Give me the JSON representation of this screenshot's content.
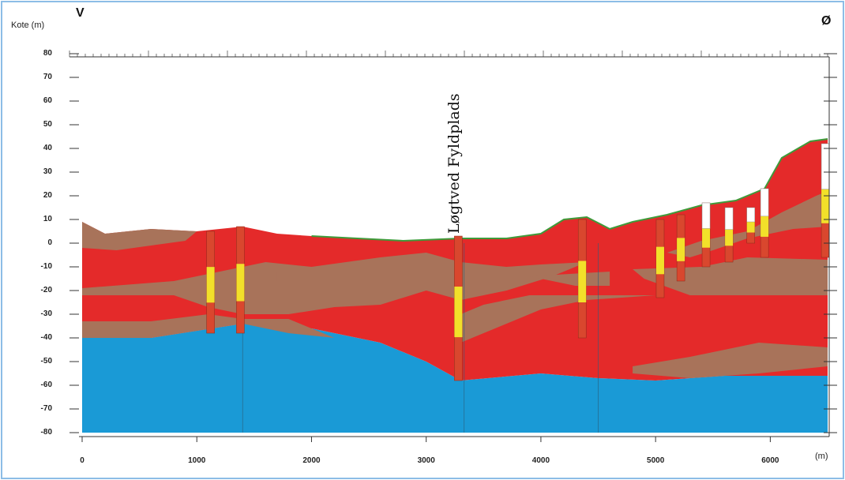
{
  "figure": {
    "west_label": "V",
    "east_label": "Ø",
    "y_axis_label": "Kote (m)",
    "x_axis_unit": "(m)",
    "site_label": "Løgtved Fyldplads"
  },
  "axes": {
    "y_ticks": [
      "80",
      "70",
      "60",
      "50",
      "40",
      "30",
      "20",
      "10",
      "0",
      "-10",
      "-20",
      "-30",
      "-40",
      "-50",
      "-60",
      "-70",
      "-80"
    ],
    "x_ticks": [
      "0",
      "1000",
      "2000",
      "3000",
      "4000",
      "5000",
      "6000"
    ],
    "x_range": [
      0,
      6500
    ],
    "y_range": [
      -80,
      80
    ]
  },
  "colors": {
    "sand_red": "#e42a2a",
    "clay_brown": "#a8735a",
    "limestone_blue": "#1a9ad6",
    "topsoil_green": "#3f9a3a",
    "frame_blue": "#7fb5e0"
  },
  "boreholes": [
    {
      "x": 1120,
      "top": 5,
      "bottom": -38
    },
    {
      "x": 1380,
      "top": 7,
      "bottom": -38
    },
    {
      "x": 3280,
      "top": 3,
      "bottom": -58
    },
    {
      "x": 4360,
      "top": 10,
      "bottom": -40
    },
    {
      "x": 5040,
      "top": 10,
      "bottom": -23
    },
    {
      "x": 5220,
      "top": 12,
      "bottom": -16
    },
    {
      "x": 5440,
      "top": 17,
      "bottom": -10
    },
    {
      "x": 5640,
      "top": 15,
      "bottom": -8
    },
    {
      "x": 5830,
      "top": 15,
      "bottom": 0
    },
    {
      "x": 5950,
      "top": 23,
      "bottom": -6
    },
    {
      "x": 6480,
      "top": 42,
      "bottom": -6
    }
  ]
}
